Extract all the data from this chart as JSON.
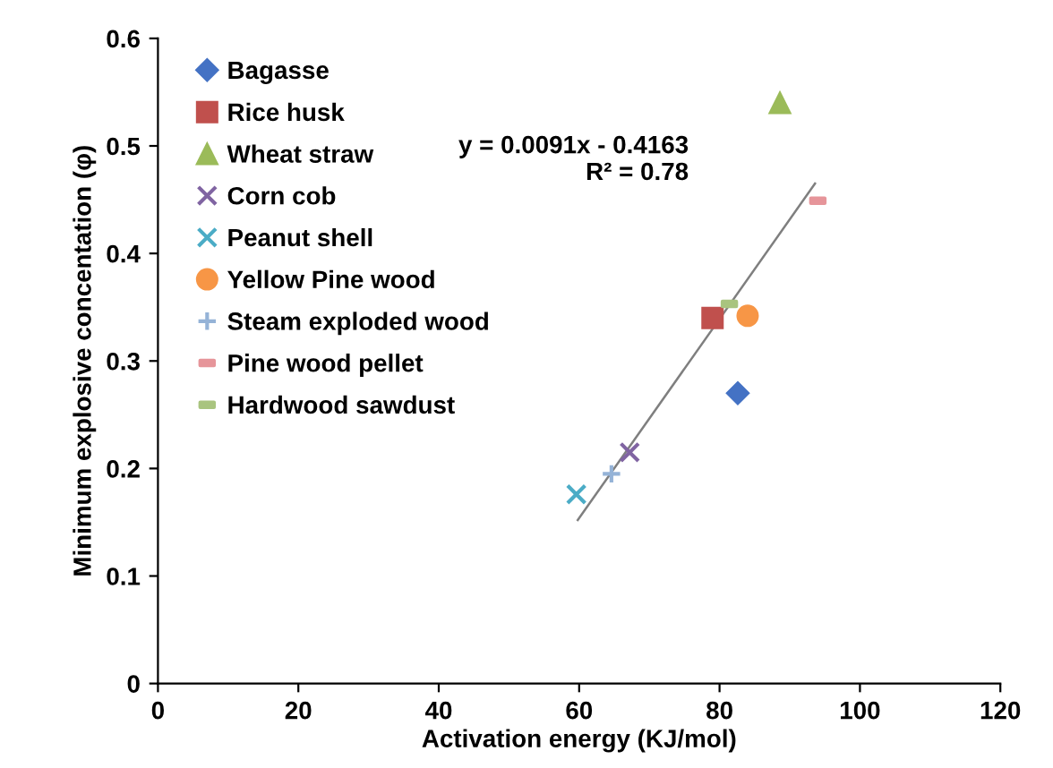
{
  "chart_data": {
    "type": "scatter",
    "xlabel": "Activation energy (KJ/mol)",
    "ylabel": "Minimum explosive concentation (φ)",
    "xlim": [
      0,
      120
    ],
    "xticks": [
      0,
      20,
      40,
      60,
      80,
      100,
      120
    ],
    "ylim": [
      0,
      0.6
    ],
    "yticks": [
      0,
      0.1,
      0.2,
      0.3,
      0.4,
      0.5,
      0.6
    ],
    "grid": false,
    "legend": "top left",
    "series": [
      {
        "name": "Bagasse",
        "color": "#4472c4",
        "marker": "diamond",
        "x": [
          82.6
        ],
        "values": [
          0.27
        ]
      },
      {
        "name": "Rice husk",
        "color": "#c0504d",
        "marker": "square",
        "x": [
          79
        ],
        "values": [
          0.34
        ]
      },
      {
        "name": "Wheat straw",
        "color": "#9bbb59",
        "marker": "triangle",
        "x": [
          88.6
        ],
        "values": [
          0.54
        ]
      },
      {
        "name": "Corn cob",
        "color": "#8064a2",
        "marker": "cross",
        "x": [
          67.2
        ],
        "values": [
          0.215
        ]
      },
      {
        "name": "Peanut shell",
        "color": "#4bacc6",
        "marker": "cross",
        "x": [
          59.6
        ],
        "values": [
          0.176
        ]
      },
      {
        "name": "Yellow Pine wood",
        "color": "#f79646",
        "marker": "circle",
        "x": [
          84
        ],
        "values": [
          0.342
        ]
      },
      {
        "name": "Steam exploded wood",
        "color": "#95b3d7",
        "marker": "plus",
        "x": [
          64.6
        ],
        "values": [
          0.195
        ]
      },
      {
        "name": "Pine wood pellet",
        "color": "#e6959a",
        "x": [
          94
        ],
        "values": [
          0.449
        ]
      },
      {
        "name": "Hardwood sawdust",
        "color": "#a9c47f",
        "x": [
          81.4
        ],
        "values": [
          0.353
        ]
      },
      {
        "type": "line",
        "color": "#7f7f7f",
        "marker": "none",
        "x": [
          59.8,
          93.6
        ],
        "values": [
          0.152,
          0.465
        ]
      }
    ],
    "annotations": [
      "y = 0.0091x - 0.4163\nR² = 0.78"
    ]
  }
}
